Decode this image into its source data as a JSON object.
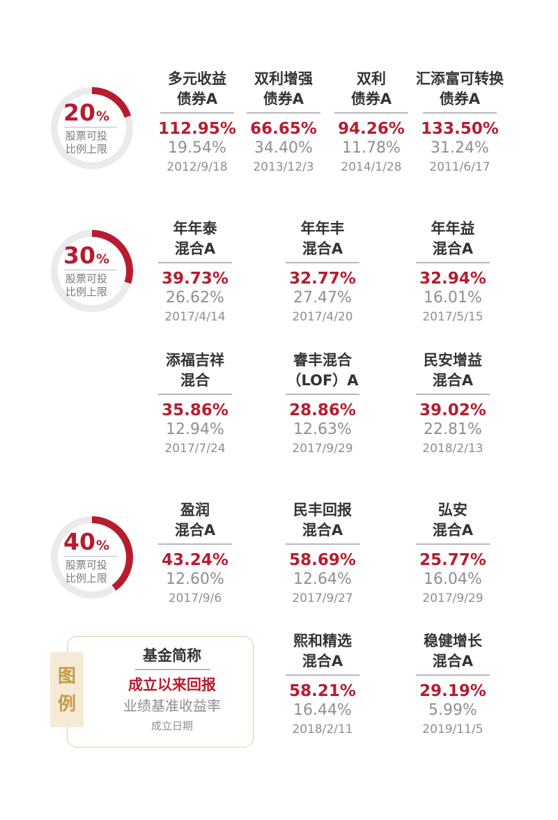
{
  "groups": [
    {
      "ring": {
        "value": "20",
        "pct": "%",
        "label1": "股票可投",
        "label2": "比例上限",
        "fill_fraction": 0.2
      },
      "funds": [
        {
          "name1": "多元收益",
          "name2": "债券A",
          "return": "112.95%",
          "benchmark": "19.54%",
          "date": "2012/9/18"
        },
        {
          "name1": "双利增强",
          "name2": "债券A",
          "return": "66.65%",
          "benchmark": "34.40%",
          "date": "2013/12/3"
        },
        {
          "name1": "双利",
          "name2": "债券A",
          "return": "94.26%",
          "benchmark": "11.78%",
          "date": "2014/1/28"
        },
        {
          "name1": "汇添富可转换",
          "name2": "债券A",
          "return": "133.50%",
          "benchmark": "31.24%",
          "date": "2011/6/17"
        }
      ]
    },
    {
      "ring": {
        "value": "30",
        "pct": "%",
        "label1": "股票可投",
        "label2": "比例上限",
        "fill_fraction": 0.3
      },
      "funds": [
        {
          "name1": "年年泰",
          "name2": "混合A",
          "return": "39.73%",
          "benchmark": "26.62%",
          "date": "2017/4/14"
        },
        {
          "name1": "年年丰",
          "name2": "混合A",
          "return": "32.77%",
          "benchmark": "27.47%",
          "date": "2017/4/20"
        },
        {
          "name1": "年年益",
          "name2": "混合A",
          "return": "32.94%",
          "benchmark": "16.01%",
          "date": "2017/5/15"
        },
        {
          "name1": "添福吉祥",
          "name2": "混合",
          "return": "35.86%",
          "benchmark": "12.94%",
          "date": "2017/7/24"
        },
        {
          "name1": "睿丰混合",
          "name2": "（LOF）A",
          "return": "28.86%",
          "benchmark": "12.63%",
          "date": "2017/9/29"
        },
        {
          "name1": "民安增益",
          "name2": "混合A",
          "return": "39.02%",
          "benchmark": "22.81%",
          "date": "2018/2/13"
        }
      ]
    },
    {
      "ring": {
        "value": "40",
        "pct": "%",
        "label1": "股票可投",
        "label2": "比例上限",
        "fill_fraction": 0.4
      },
      "funds": [
        {
          "name1": "盈润",
          "name2": "混合A",
          "return": "43.24%",
          "benchmark": "12.60%",
          "date": "2017/9/6"
        },
        {
          "name1": "民丰回报",
          "name2": "混合A",
          "return": "58.69%",
          "benchmark": "12.64%",
          "date": "2017/9/27"
        },
        {
          "name1": "弘安",
          "name2": "混合A",
          "return": "25.77%",
          "benchmark": "16.04%",
          "date": "2017/9/29"
        },
        {
          "name1": "熙和精选",
          "name2": "混合A",
          "return": "58.21%",
          "benchmark": "16.44%",
          "date": "2018/2/11"
        },
        {
          "name1": "稳健增长",
          "name2": "混合A",
          "return": "29.19%",
          "benchmark": "5.99%",
          "date": "2019/11/5"
        }
      ]
    }
  ],
  "legend": {
    "tag1": "图",
    "tag2": "例",
    "name": "基金简称",
    "return": "成立以来回报",
    "benchmark": "业绩基准收益率",
    "date": "成立日期"
  },
  "colors": {
    "accent": "#b71c2e",
    "ring_track": "#ebebeb",
    "muted": "#8e8e8e",
    "legend_gold": "#c59a45"
  }
}
